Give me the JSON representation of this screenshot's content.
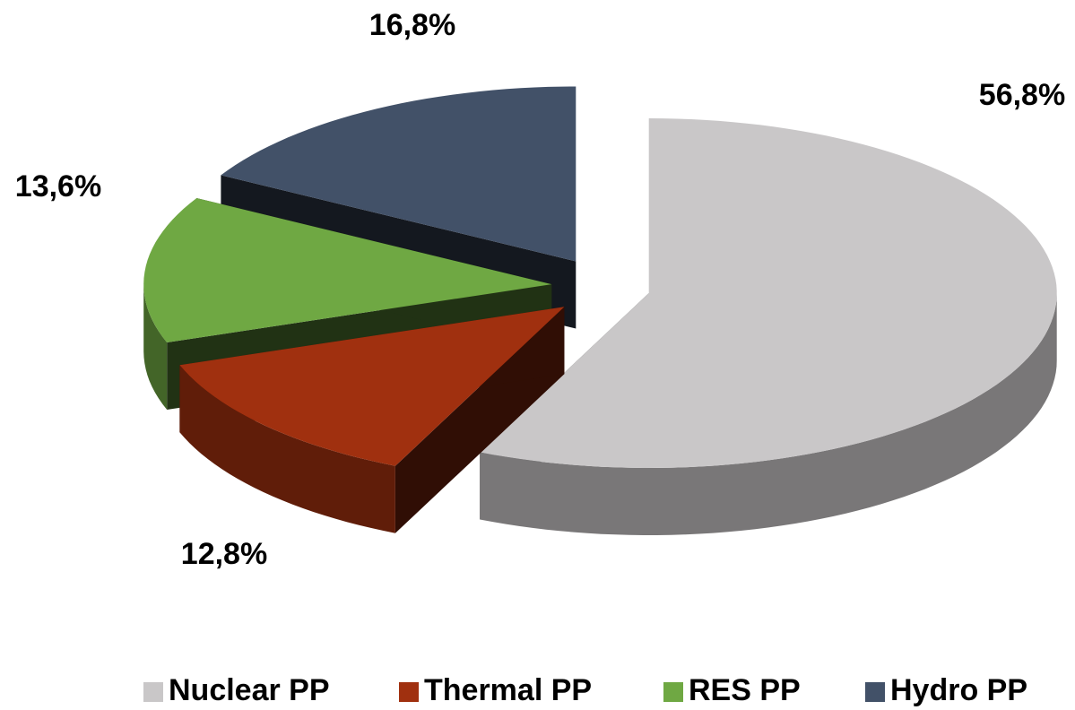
{
  "chart_data": {
    "type": "pie",
    "categories": [
      "Nuclear PP",
      "Thermal PP",
      "RES PP",
      "Hydro PP"
    ],
    "values": [
      56.8,
      12.8,
      13.6,
      16.8
    ],
    "value_labels": [
      "56,8%",
      "12,8%",
      "13,6%",
      "16,8%"
    ],
    "colors": [
      "#c9c7c8",
      "#a0300f",
      "#6fa843",
      "#425168"
    ],
    "legend": "bottom"
  }
}
